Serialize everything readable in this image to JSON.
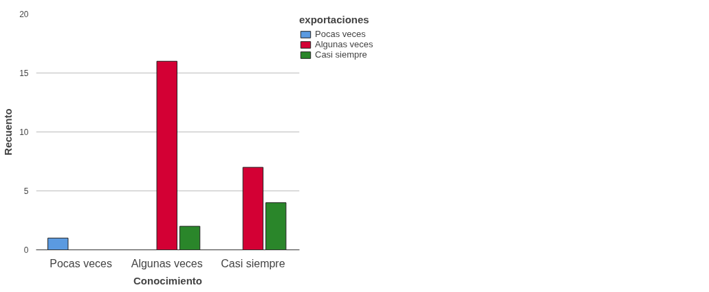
{
  "chart_data": {
    "type": "bar",
    "xlabel": "Conocimiento",
    "ylabel": "Recuento",
    "legend_title": "exportaciones",
    "categories": [
      "Pocas veces",
      "Algunas veces",
      "Casi siempre"
    ],
    "series": [
      {
        "name": "Pocas veces",
        "color": "#5b9ae0",
        "values": [
          1,
          null,
          null
        ]
      },
      {
        "name": "Algunas veces",
        "color": "#d30034",
        "values": [
          null,
          16,
          7
        ]
      },
      {
        "name": "Casi siempre",
        "color": "#2a862a",
        "values": [
          null,
          2,
          4
        ]
      }
    ],
    "ylim": [
      0,
      20
    ],
    "yticks": [
      0,
      5,
      10,
      15,
      20
    ],
    "grid": "y",
    "legend": "top right"
  }
}
